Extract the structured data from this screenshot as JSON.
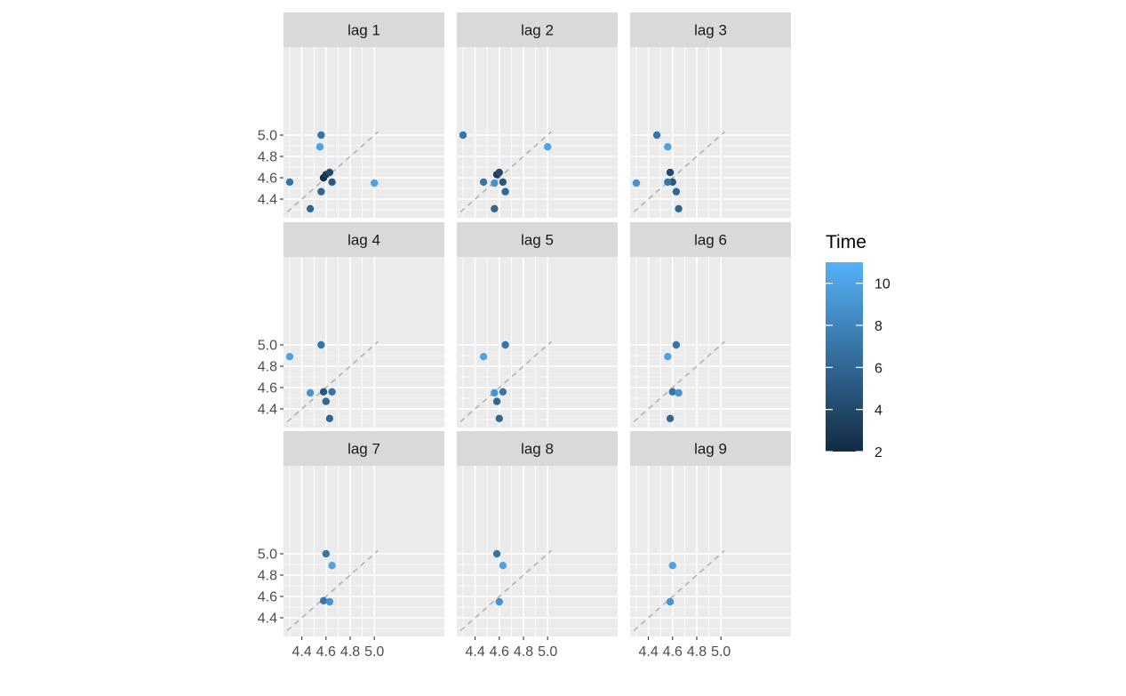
{
  "chart_data": {
    "type": "scatter",
    "facet_labels": [
      "lag 1",
      "lag 2",
      "lag 3",
      "lag 4",
      "lag 5",
      "lag 6",
      "lag 7",
      "lag 8",
      "lag 9"
    ],
    "xlim": [
      4.3,
      5.0
    ],
    "ylim": [
      4.3,
      5.0
    ],
    "x_ticks": [
      "4.4",
      "4.6",
      "4.8",
      "5.0"
    ],
    "y_ticks": [
      "4.4",
      "4.6",
      "4.8",
      "5.0"
    ],
    "reference_line": "y = x",
    "legend": {
      "title": "Time",
      "min": 2,
      "max": 11,
      "labels": [
        "10",
        "8",
        "6",
        "4",
        "2"
      ],
      "color_low": "#132B43",
      "color_high": "#56B1F7",
      "placement": "right"
    },
    "panels": [
      {
        "label": "lag 1",
        "points": [
          {
            "x": 4.56,
            "y": 5.0,
            "time": 7
          },
          {
            "x": 4.55,
            "y": 4.89,
            "time": 10
          },
          {
            "x": 4.58,
            "y": 4.6,
            "time": 2
          },
          {
            "x": 4.6,
            "y": 4.63,
            "time": 3
          },
          {
            "x": 4.63,
            "y": 4.65,
            "time": 4
          },
          {
            "x": 4.65,
            "y": 4.56,
            "time": 5
          },
          {
            "x": 4.3,
            "y": 4.56,
            "time": 7
          },
          {
            "x": 4.56,
            "y": 4.47,
            "time": 6
          },
          {
            "x": 4.47,
            "y": 4.31,
            "time": 6
          },
          {
            "x": 5.0,
            "y": 4.55,
            "time": 10
          }
        ]
      },
      {
        "label": "lag 2",
        "points": [
          {
            "x": 4.3,
            "y": 5.0,
            "time": 7
          },
          {
            "x": 5.0,
            "y": 4.89,
            "time": 10
          },
          {
            "x": 4.58,
            "y": 4.63,
            "time": 3
          },
          {
            "x": 4.6,
            "y": 4.65,
            "time": 4
          },
          {
            "x": 4.63,
            "y": 4.56,
            "time": 5
          },
          {
            "x": 4.47,
            "y": 4.56,
            "time": 7
          },
          {
            "x": 4.56,
            "y": 4.55,
            "time": 9
          },
          {
            "x": 4.65,
            "y": 4.47,
            "time": 6
          },
          {
            "x": 4.56,
            "y": 4.31,
            "time": 6
          }
        ]
      },
      {
        "label": "lag 3",
        "points": [
          {
            "x": 4.47,
            "y": 5.0,
            "time": 7
          },
          {
            "x": 4.56,
            "y": 4.89,
            "time": 10
          },
          {
            "x": 4.58,
            "y": 4.65,
            "time": 4
          },
          {
            "x": 4.6,
            "y": 4.56,
            "time": 5
          },
          {
            "x": 4.56,
            "y": 4.56,
            "time": 7
          },
          {
            "x": 4.3,
            "y": 4.55,
            "time": 9
          },
          {
            "x": 4.63,
            "y": 4.47,
            "time": 6
          },
          {
            "x": 4.65,
            "y": 4.31,
            "time": 6
          }
        ]
      },
      {
        "label": "lag 4",
        "points": [
          {
            "x": 4.56,
            "y": 5.0,
            "time": 7
          },
          {
            "x": 4.3,
            "y": 4.89,
            "time": 10
          },
          {
            "x": 4.58,
            "y": 4.56,
            "time": 5
          },
          {
            "x": 4.65,
            "y": 4.56,
            "time": 7
          },
          {
            "x": 4.47,
            "y": 4.55,
            "time": 9
          },
          {
            "x": 4.6,
            "y": 4.47,
            "time": 6
          },
          {
            "x": 4.63,
            "y": 4.31,
            "time": 6
          }
        ]
      },
      {
        "label": "lag 5",
        "points": [
          {
            "x": 4.65,
            "y": 5.0,
            "time": 7
          },
          {
            "x": 4.47,
            "y": 4.89,
            "time": 10
          },
          {
            "x": 4.63,
            "y": 4.56,
            "time": 7
          },
          {
            "x": 4.56,
            "y": 4.55,
            "time": 9
          },
          {
            "x": 4.58,
            "y": 4.47,
            "time": 6
          },
          {
            "x": 4.6,
            "y": 4.31,
            "time": 6
          }
        ]
      },
      {
        "label": "lag 6",
        "points": [
          {
            "x": 4.63,
            "y": 5.0,
            "time": 7
          },
          {
            "x": 4.56,
            "y": 4.89,
            "time": 10
          },
          {
            "x": 4.6,
            "y": 4.56,
            "time": 7
          },
          {
            "x": 4.65,
            "y": 4.55,
            "time": 9
          },
          {
            "x": 4.58,
            "y": 4.31,
            "time": 6
          }
        ]
      },
      {
        "label": "lag 7",
        "points": [
          {
            "x": 4.6,
            "y": 5.0,
            "time": 7
          },
          {
            "x": 4.65,
            "y": 4.89,
            "time": 10
          },
          {
            "x": 4.58,
            "y": 4.56,
            "time": 7
          },
          {
            "x": 4.63,
            "y": 4.55,
            "time": 9
          }
        ]
      },
      {
        "label": "lag 8",
        "points": [
          {
            "x": 4.58,
            "y": 5.0,
            "time": 7
          },
          {
            "x": 4.63,
            "y": 4.89,
            "time": 10
          },
          {
            "x": 4.6,
            "y": 4.55,
            "time": 9
          }
        ]
      },
      {
        "label": "lag 9",
        "points": [
          {
            "x": 4.6,
            "y": 4.89,
            "time": 10
          },
          {
            "x": 4.58,
            "y": 4.55,
            "time": 9
          }
        ]
      }
    ]
  }
}
